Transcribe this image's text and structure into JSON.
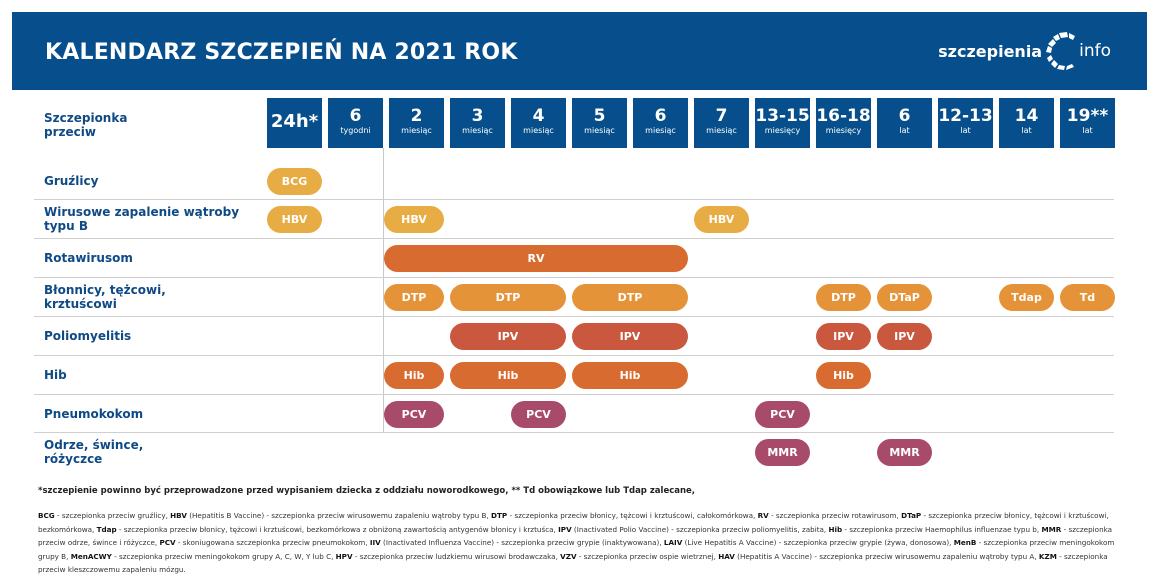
{
  "header": {
    "title": "KALENDARZ SZCZEPIEŃ NA 2021 ROK",
    "logo_part1": "szczepienia",
    "logo_part2": "info"
  },
  "colors": {
    "navy": "#064f8c",
    "text_blue": "#0f4a85",
    "yellow": "#e8ac45",
    "orange": "#e49338",
    "deep_orange": "#d86b30",
    "red_orange": "#c9583e",
    "plum": "#a84b6b"
  },
  "table": {
    "header_label": "Szczepionka przeciw",
    "columns": [
      {
        "num": "24h*",
        "unit": ""
      },
      {
        "num": "6",
        "unit": "tygodni"
      },
      {
        "num": "2",
        "unit": "miesiąc"
      },
      {
        "num": "3",
        "unit": "miesiąc"
      },
      {
        "num": "4",
        "unit": "miesiąc"
      },
      {
        "num": "5",
        "unit": "miesiąc"
      },
      {
        "num": "6",
        "unit": "miesiąc"
      },
      {
        "num": "7",
        "unit": "miesiąc"
      },
      {
        "num": "13-15",
        "unit": "miesięcy"
      },
      {
        "num": "16-18",
        "unit": "miesięcy"
      },
      {
        "num": "6",
        "unit": "lat"
      },
      {
        "num": "12-13",
        "unit": "lat"
      },
      {
        "num": "14",
        "unit": "lat"
      },
      {
        "num": "19**",
        "unit": "lat"
      }
    ],
    "rows": [
      {
        "label": "Gruźlicy",
        "pills": [
          {
            "text": "BCG",
            "from": 0,
            "to": 0,
            "color": "yellow"
          }
        ]
      },
      {
        "label": "Wirusowe zapalenie wątroby typu B",
        "pills": [
          {
            "text": "HBV",
            "from": 0,
            "to": 0,
            "color": "yellow"
          },
          {
            "text": "HBV",
            "from": 2,
            "to": 2,
            "color": "yellow"
          },
          {
            "text": "HBV",
            "from": 7,
            "to": 7,
            "color": "yellow"
          }
        ]
      },
      {
        "label": "Rotawirusom",
        "pills": [
          {
            "text": "RV",
            "from": 2,
            "to": 6,
            "color": "deep_orange"
          }
        ]
      },
      {
        "label": "Błonnicy, tężcowi, krztuścowi",
        "pills": [
          {
            "text": "DTP",
            "from": 2,
            "to": 2,
            "color": "orange"
          },
          {
            "text": "DTP",
            "from": 3,
            "to": 4,
            "color": "orange"
          },
          {
            "text": "DTP",
            "from": 5,
            "to": 6,
            "color": "orange"
          },
          {
            "text": "DTP",
            "from": 9,
            "to": 9,
            "color": "orange"
          },
          {
            "text": "DTaP",
            "from": 10,
            "to": 10,
            "color": "orange"
          },
          {
            "text": "Tdap",
            "from": 12,
            "to": 12,
            "color": "orange"
          },
          {
            "text": "Td",
            "from": 13,
            "to": 13,
            "color": "orange"
          }
        ]
      },
      {
        "label": "Poliomyelitis",
        "pills": [
          {
            "text": "IPV",
            "from": 3,
            "to": 4,
            "color": "red_orange"
          },
          {
            "text": "IPV",
            "from": 5,
            "to": 6,
            "color": "red_orange"
          },
          {
            "text": "IPV",
            "from": 9,
            "to": 9,
            "color": "red_orange"
          },
          {
            "text": "IPV",
            "from": 10,
            "to": 10,
            "color": "red_orange"
          }
        ]
      },
      {
        "label": "Hib",
        "pills": [
          {
            "text": "Hib",
            "from": 2,
            "to": 2,
            "color": "deep_orange"
          },
          {
            "text": "Hib",
            "from": 3,
            "to": 4,
            "color": "deep_orange"
          },
          {
            "text": "Hib",
            "from": 5,
            "to": 6,
            "color": "deep_orange"
          },
          {
            "text": "Hib",
            "from": 9,
            "to": 9,
            "color": "deep_orange"
          }
        ]
      },
      {
        "label": "Pneumokokom",
        "pills": [
          {
            "text": "PCV",
            "from": 2,
            "to": 2,
            "color": "plum"
          },
          {
            "text": "PCV",
            "from": 4,
            "to": 4,
            "color": "plum"
          },
          {
            "text": "PCV",
            "from": 8,
            "to": 8,
            "color": "plum"
          }
        ]
      },
      {
        "label": "Odrze, śwince, różyczce",
        "pills": [
          {
            "text": "MMR",
            "from": 8,
            "to": 8,
            "color": "plum"
          },
          {
            "text": "MMR",
            "from": 10,
            "to": 10,
            "color": "plum"
          }
        ]
      }
    ]
  },
  "footnotes": {
    "note1": "*szczepienie powinno być przeprowadzone przed wypisaniem dziecka z oddziału noworodkowego, ** Td obowiązkowe lub Tdap zalecane,",
    "glossary": [
      {
        "abbr": "BCG",
        "text": " - szczepionka przeciw gruźlicy, "
      },
      {
        "abbr": "HBV",
        "text": " (Hepatitis B Vaccine) - szczepionka przeciw wirusowemu zapaleniu wątroby typu B, "
      },
      {
        "abbr": "DTP",
        "text": " - szczepionka przeciw błonicy, tężcowi i krztuścowi, całokomórkowa, "
      },
      {
        "abbr": "RV",
        "text": " - szczepionka przeciw rotawirusom, "
      },
      {
        "abbr": "DTaP",
        "text": " - szczepionka przeciw błonicy, tężcowi i krztuścowi, bezkomórkowa, "
      },
      {
        "abbr": "Tdap",
        "text": " - szczepionka przeciw błonicy, tężcowi i krztuścowi, bezkomórkowa z obniżoną zawartością antygenów błonicy i krztuśca, "
      },
      {
        "abbr": "IPV",
        "text": " (Inactivated Polio Vaccine) - szczepionka przeciw poliomyelitis, zabita, "
      },
      {
        "abbr": "Hib",
        "text": " - szczepionka przeciw Haemophilus influenzae typu b, "
      },
      {
        "abbr": "MMR",
        "text": " - szczepionka przeciw odrze, śwince i różyczce, "
      },
      {
        "abbr": "PCV",
        "text": " - skoniugowana szczepionka przeciw pneumokokom,  "
      },
      {
        "abbr": "IIV",
        "text": " (Inactivated Influenza Vaccine) - szczepionka przeciw grypie (inaktywowana), "
      },
      {
        "abbr": "LAIV",
        "text": " (Live Hepatitis A Vaccine) - szczepionka przeciw grypie (żywa, donosowa),  "
      },
      {
        "abbr": "MenB",
        "text": " - szczepionka przeciw meningokokom grupy B, "
      },
      {
        "abbr": "MenACWY",
        "text": " - szczepionka przeciw meningokokom grupy A, C, W, Y lub C, "
      },
      {
        "abbr": "HPV",
        "text": " - szczepionka przeciw ludzkiemu wirusowi brodawczaka, "
      },
      {
        "abbr": "VZV",
        "text": " - szczepionka przeciw ospie wietrznej, "
      },
      {
        "abbr": "HAV",
        "text": " (Hepatitis A Vaccine) - szczepionka przeciw wirusowemu zapaleniu wątroby typu A, "
      },
      {
        "abbr": "KZM",
        "text": " - szczepionka przeciw kleszczowemu zapaleniu mózgu."
      }
    ]
  }
}
